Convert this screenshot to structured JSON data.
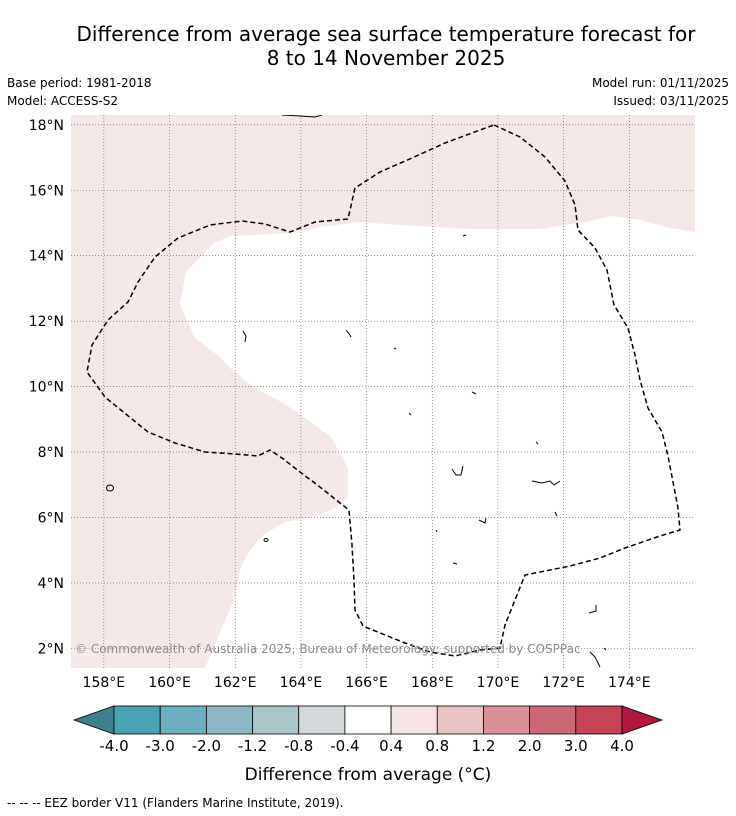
{
  "title": {
    "line1": "Difference from average sea surface temperature forecast for",
    "line2": "8 to 14 November 2025"
  },
  "meta_left": {
    "base_period": "Base period: 1981-2018",
    "model": "Model: ACCESS-S2"
  },
  "meta_right": {
    "model_run": "Model run: 01/11/2025",
    "issued": "Issued: 03/11/2025"
  },
  "map": {
    "longitude_labels": [
      "158°E",
      "160°E",
      "162°E",
      "164°E",
      "166°E",
      "168°E",
      "170°E",
      "172°E",
      "174°E"
    ],
    "latitude_labels": [
      "18°N",
      "16°N",
      "14°N",
      "12°N",
      "10°N",
      "8°N",
      "6°N",
      "4°N",
      "2°N"
    ],
    "lon_range": [
      157.0,
      176.0
    ],
    "lat_range": [
      1.4,
      18.3
    ],
    "copyright": "© Commonwealth of Australia 2025, Bureau of Meteorology; supported by COSPPac",
    "anomaly_fill_color": "#f5e9e8",
    "border_color": "#000000"
  },
  "colorbar": {
    "tick_labels": [
      "-4.0",
      "-3.0",
      "-2.0",
      "-1.2",
      "-0.8",
      "-0.4",
      "0.4",
      "0.8",
      "1.2",
      "2.0",
      "3.0",
      "4.0"
    ],
    "colors": [
      "#3e808b",
      "#4aa3b5",
      "#6cafbf",
      "#8db8c3",
      "#a8c6ca",
      "#d3d8da",
      "#ffffff",
      "#f5e6e5",
      "#e8c4c2",
      "#da9098",
      "#cc6876",
      "#c34555",
      "#b2183f"
    ],
    "label": "Difference from average (°C)"
  },
  "footnote": "--  --  -- EEZ border V11 (Flanders Marine Institute, 2019)."
}
